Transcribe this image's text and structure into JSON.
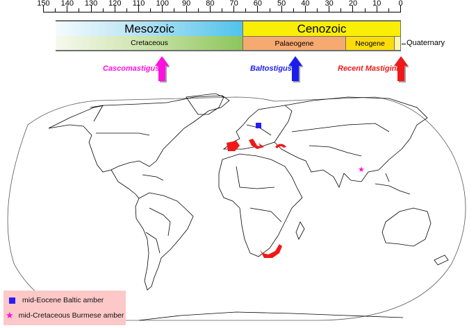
{
  "timescale": {
    "unit": "Ma",
    "axis_ticks": [
      "150",
      "140",
      "130",
      "120",
      "110",
      "100",
      "90",
      "80",
      "70",
      "60",
      "50",
      "40",
      "30",
      "20",
      "10",
      "0"
    ],
    "eras": [
      {
        "name": "Mesozoic",
        "start": 150,
        "end": 66,
        "color": "#4fc3ec"
      },
      {
        "name": "Cenozoic",
        "start": 66,
        "end": 0,
        "color": "#f9ee06"
      }
    ],
    "periods": [
      {
        "name": "Cretaceous",
        "start": 150,
        "end": 66,
        "color": "#8cc55a"
      },
      {
        "name": "Palaeogene",
        "start": 66,
        "end": 23,
        "color": "#f6aa70"
      },
      {
        "name": "Neogene",
        "start": 23,
        "end": 2.6,
        "color": "#fddc0e"
      },
      {
        "name": "Quaternary",
        "start": 2.6,
        "end": 0,
        "color": "#fff7a8"
      }
    ]
  },
  "markers": [
    {
      "label": "Cascomastigus",
      "age": 99,
      "color": "#ff10e0"
    },
    {
      "label": "Baltostigus",
      "age": 44,
      "color": "#1c1cf0"
    },
    {
      "label": "Recent Mastigini",
      "age": 0,
      "color": "#f01818"
    }
  ],
  "map": {
    "projection": "Robinson-like world outline",
    "red_distribution_regions": [
      "Iberian Peninsula",
      "Italy / Balkans",
      "Anatolia",
      "Southern Africa (Cape region)"
    ],
    "fossil_sites": [
      {
        "type": "square",
        "label": "mid-Eocene Baltic amber",
        "region": "Baltic",
        "color": "#2a1cf5"
      },
      {
        "type": "star",
        "label": "mid-Cretaceous Burmese amber",
        "region": "Myanmar",
        "color": "#ff10e0"
      }
    ]
  },
  "legend": {
    "items": [
      {
        "symbol": "square",
        "label": "mid-Eocene Baltic amber",
        "color": "#2a1cf5"
      },
      {
        "symbol": "★",
        "label": "mid-Cretaceous Burmese amber",
        "color": "#ff10e0"
      }
    ],
    "background": "#fdc8c8"
  }
}
